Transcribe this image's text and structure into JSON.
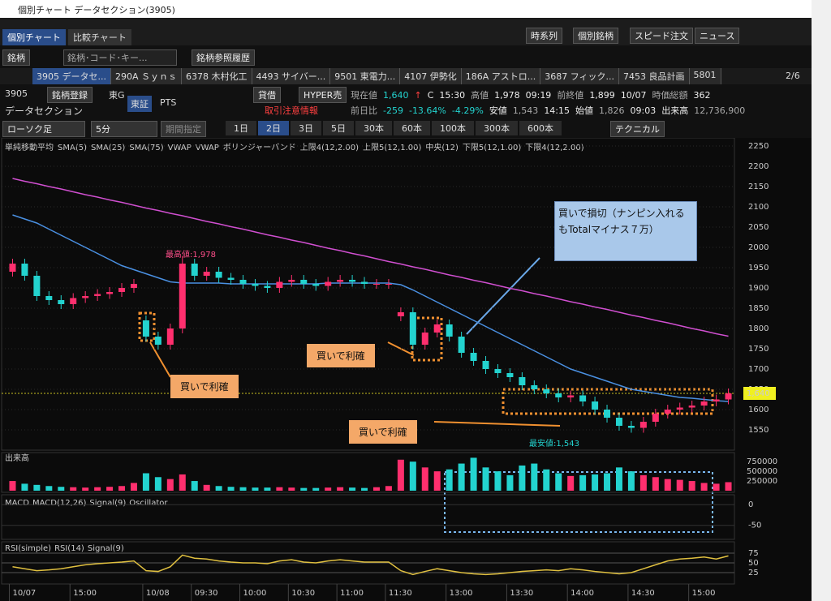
{
  "window_title": "個別チャート データセクション(3905)",
  "tabs": [
    "個別チャート",
    "比較チャート"
  ],
  "toolbar_buttons": [
    "時系列",
    "個別銘柄",
    "スピード注文",
    "ニュース"
  ],
  "search": {
    "label": "銘柄",
    "placeholder": "銘柄･コード･キー...",
    "history": "銘柄参照履歴"
  },
  "stock_tabs": [
    "3905 データセ...",
    "290A Ｓｙｎｓ",
    "6378 木村化工",
    "4493 サイバー...",
    "9501 東電力...",
    "4107 伊勢化",
    "186A アストロ...",
    "3687 フィック...",
    "7453 良品計画",
    "5801"
  ],
  "page": "2/6",
  "info": {
    "code": "3905",
    "name": "データセクション",
    "register": "銘柄登録",
    "market": "東G",
    "exchanges": [
      "東証",
      "PTS"
    ],
    "badges": [
      "貸借",
      "HYPER売"
    ],
    "warning": "取引注意情報",
    "row1": [
      "現在値",
      "1,640",
      "↑",
      "C",
      "15:30",
      "高値",
      "1,978",
      "09:19",
      "前終値",
      "1,899",
      "10/07",
      "時価総額",
      "362"
    ],
    "row2": [
      "前日比",
      "-259",
      "-13.64%",
      "-4.29%",
      "安値",
      "1,543",
      "14:15",
      "始値",
      "1,826",
      "09:03",
      "出来高",
      "12,736,900"
    ]
  },
  "controls": {
    "chart_kind": "ローソク足",
    "interval": "5分",
    "range": "期間指定",
    "periods": [
      "1日",
      "2日",
      "3日",
      "5日",
      "30本",
      "60本",
      "100本",
      "300本",
      "600本"
    ],
    "technical": "テクニカル"
  },
  "chart_data": {
    "type": "candlestick",
    "legend": [
      {
        "text": "単純移動平均",
        "color": "#dddddd"
      },
      {
        "text": "SMA(5)",
        "color": "#ff4f8b"
      },
      {
        "text": "SMA(25)",
        "color": "#4a90e2"
      },
      {
        "text": "SMA(75)",
        "color": "#d04fd0"
      },
      {
        "text": "VWAP",
        "color": "#dddddd"
      },
      {
        "text": "VWAP",
        "color": "#38d038"
      },
      {
        "text": "ボリンジャーバンド",
        "color": "#dddddd"
      },
      {
        "text": "上限4(12,2.00)",
        "color": "#4a90e2"
      },
      {
        "text": "上限5(12,1.00)",
        "color": "#e0c040"
      },
      {
        "text": "中央(12)",
        "color": "#ff4f8b"
      },
      {
        "text": "下限5(12,1.00)",
        "color": "#e0c040"
      },
      {
        "text": "下限4(12,2.00)",
        "color": "#4a90e2"
      }
    ],
    "up_color": "#ff2f6e",
    "down_color": "#23d3cf",
    "open": [
      1940,
      1960,
      1930,
      1880,
      1870,
      1860,
      1875,
      1880,
      1885,
      1890,
      1900,
      1820,
      1780,
      1760,
      1800,
      1960,
      1930,
      1940,
      1925,
      1920,
      1910,
      1905,
      1900,
      1915,
      1920,
      1910,
      1905,
      1915,
      1920,
      1915,
      1910,
      1910,
      1830,
      1840,
      1760,
      1790,
      1810,
      1780,
      1740,
      1720,
      1700,
      1690,
      1680,
      1660,
      1650,
      1640,
      1630,
      1635,
      1620,
      1600,
      1580,
      1560,
      1555,
      1570,
      1590,
      1600,
      1605,
      1610,
      1620,
      1625
    ],
    "high": [
      1972,
      1972,
      1942,
      1892,
      1882,
      1887,
      1892,
      1897,
      1902,
      1912,
      1922,
      1832,
      1792,
      1812,
      1978,
      1972,
      1952,
      1952,
      1937,
      1932,
      1922,
      1917,
      1927,
      1932,
      1932,
      1922,
      1927,
      1932,
      1932,
      1927,
      1922,
      1922,
      1852,
      1852,
      1802,
      1822,
      1822,
      1792,
      1752,
      1732,
      1712,
      1702,
      1692,
      1672,
      1662,
      1652,
      1647,
      1647,
      1632,
      1612,
      1592,
      1572,
      1582,
      1602,
      1612,
      1617,
      1622,
      1632,
      1637,
      1652
    ],
    "low": [
      1928,
      1918,
      1868,
      1858,
      1848,
      1848,
      1863,
      1868,
      1873,
      1878,
      1888,
      1768,
      1748,
      1748,
      1788,
      1918,
      1918,
      1913,
      1908,
      1898,
      1893,
      1888,
      1888,
      1903,
      1898,
      1893,
      1893,
      1903,
      1903,
      1898,
      1898,
      1898,
      1818,
      1748,
      1748,
      1778,
      1768,
      1728,
      1708,
      1688,
      1678,
      1668,
      1648,
      1638,
      1628,
      1618,
      1618,
      1608,
      1588,
      1568,
      1548,
      1543,
      1543,
      1558,
      1578,
      1588,
      1593,
      1598,
      1608,
      1613
    ],
    "close": [
      1960,
      1930,
      1880,
      1870,
      1860,
      1875,
      1880,
      1885,
      1890,
      1900,
      1910,
      1780,
      1760,
      1800,
      1960,
      1930,
      1940,
      1925,
      1920,
      1910,
      1905,
      1900,
      1915,
      1920,
      1910,
      1905,
      1915,
      1920,
      1915,
      1910,
      1910,
      1910,
      1840,
      1760,
      1790,
      1810,
      1780,
      1740,
      1720,
      1700,
      1690,
      1680,
      1660,
      1650,
      1640,
      1630,
      1635,
      1620,
      1600,
      1580,
      1560,
      1555,
      1570,
      1590,
      1600,
      1605,
      1610,
      1620,
      1625,
      1640
    ],
    "lines": [
      {
        "color": "#d04fd0",
        "values": [
          2170,
          2163,
          2157,
          2150,
          2144,
          2137,
          2130,
          2124,
          2117,
          2111,
          2104,
          2097,
          2091,
          2084,
          2078,
          2071,
          2064,
          2058,
          2051,
          2045,
          2038,
          2031,
          2025,
          2018,
          2012,
          2005,
          1998,
          1992,
          1985,
          1979,
          1972,
          1965,
          1959,
          1952,
          1946,
          1939,
          1932,
          1926,
          1919,
          1913,
          1906,
          1899,
          1893,
          1886,
          1880,
          1873,
          1866,
          1860,
          1853,
          1847,
          1840,
          1833,
          1827,
          1820,
          1814,
          1807,
          1800,
          1794,
          1787,
          1781
        ]
      },
      {
        "color": "#4a90e2",
        "values": [
          2080,
          2070,
          2060,
          2045,
          2030,
          2015,
          2000,
          1985,
          1970,
          1955,
          1945,
          1935,
          1925,
          1915,
          1912,
          1912,
          1912,
          1912,
          1910,
          1910,
          1910,
          1910,
          1910,
          1910,
          1910,
          1910,
          1912,
          1912,
          1912,
          1912,
          1912,
          1912,
          1908,
          1895,
          1880,
          1865,
          1850,
          1835,
          1820,
          1805,
          1790,
          1775,
          1760,
          1745,
          1730,
          1715,
          1700,
          1690,
          1680,
          1670,
          1660,
          1650,
          1645,
          1640,
          1635,
          1630,
          1628,
          1625,
          1622,
          1620
        ]
      }
    ],
    "ylim": [
      1530,
      2270
    ],
    "yticks": [
      1550,
      1600,
      1650,
      1700,
      1750,
      1800,
      1850,
      1900,
      1950,
      2000,
      2050,
      2100,
      2150,
      2200,
      2250
    ],
    "current_price": {
      "value": 1640,
      "label": "1,640"
    },
    "x_labels": [
      "10/07",
      "15:00",
      "10/08",
      "09:30",
      "10:00",
      "10:30",
      "11:00",
      "11:30",
      "13:00",
      "13:30",
      "14:00",
      "14:30",
      "15:00"
    ],
    "annotations": [
      "買いで損切（ナンピン入れるもTotalマイナス７万）",
      "買いで利確",
      "買いで利確",
      "買いで利確",
      "最高値:1,978",
      "最安値:1,543"
    ],
    "volume": {
      "label": "出来高",
      "ylim": [
        0,
        900000
      ],
      "yticks": [
        750000,
        500000,
        250000
      ],
      "values": [
        250000,
        180000,
        150000,
        120000,
        100000,
        90000,
        80000,
        90000,
        100000,
        120000,
        200000,
        450000,
        350000,
        300000,
        420000,
        250000,
        150000,
        120000,
        100000,
        90000,
        80000,
        80000,
        90000,
        80000,
        70000,
        70000,
        80000,
        90000,
        80000,
        70000,
        90000,
        120000,
        800000,
        750000,
        600000,
        500000,
        550000,
        700000,
        850000,
        600000,
        500000,
        400000,
        650000,
        700000,
        550000,
        450000,
        380000,
        400000,
        420000,
        450000,
        600000,
        500000,
        400000,
        350000,
        300000,
        280000,
        250000,
        200000,
        180000,
        220000
      ]
    },
    "macd": {
      "labels": [
        "MACD",
        "MACD(12,26)",
        "Signal(9)",
        "Oscillator"
      ],
      "ylim": [
        -80,
        20
      ],
      "yticks": [
        0,
        -50
      ]
    },
    "rsi": {
      "labels": [
        "RSI(simple)",
        "RSI(14)",
        "Signal(9)"
      ],
      "color": "#e0c040",
      "ylim": [
        0,
        100
      ],
      "yticks": [
        75,
        50,
        25
      ],
      "values": [
        40,
        35,
        30,
        32,
        35,
        40,
        45,
        48,
        50,
        52,
        55,
        30,
        28,
        40,
        70,
        62,
        60,
        55,
        52,
        50,
        50,
        48,
        55,
        58,
        52,
        50,
        55,
        58,
        55,
        52,
        52,
        52,
        30,
        20,
        28,
        35,
        30,
        25,
        22,
        20,
        22,
        25,
        28,
        30,
        32,
        30,
        35,
        32,
        28,
        25,
        22,
        25,
        35,
        45,
        55,
        60,
        62,
        65,
        60,
        68
      ]
    }
  }
}
